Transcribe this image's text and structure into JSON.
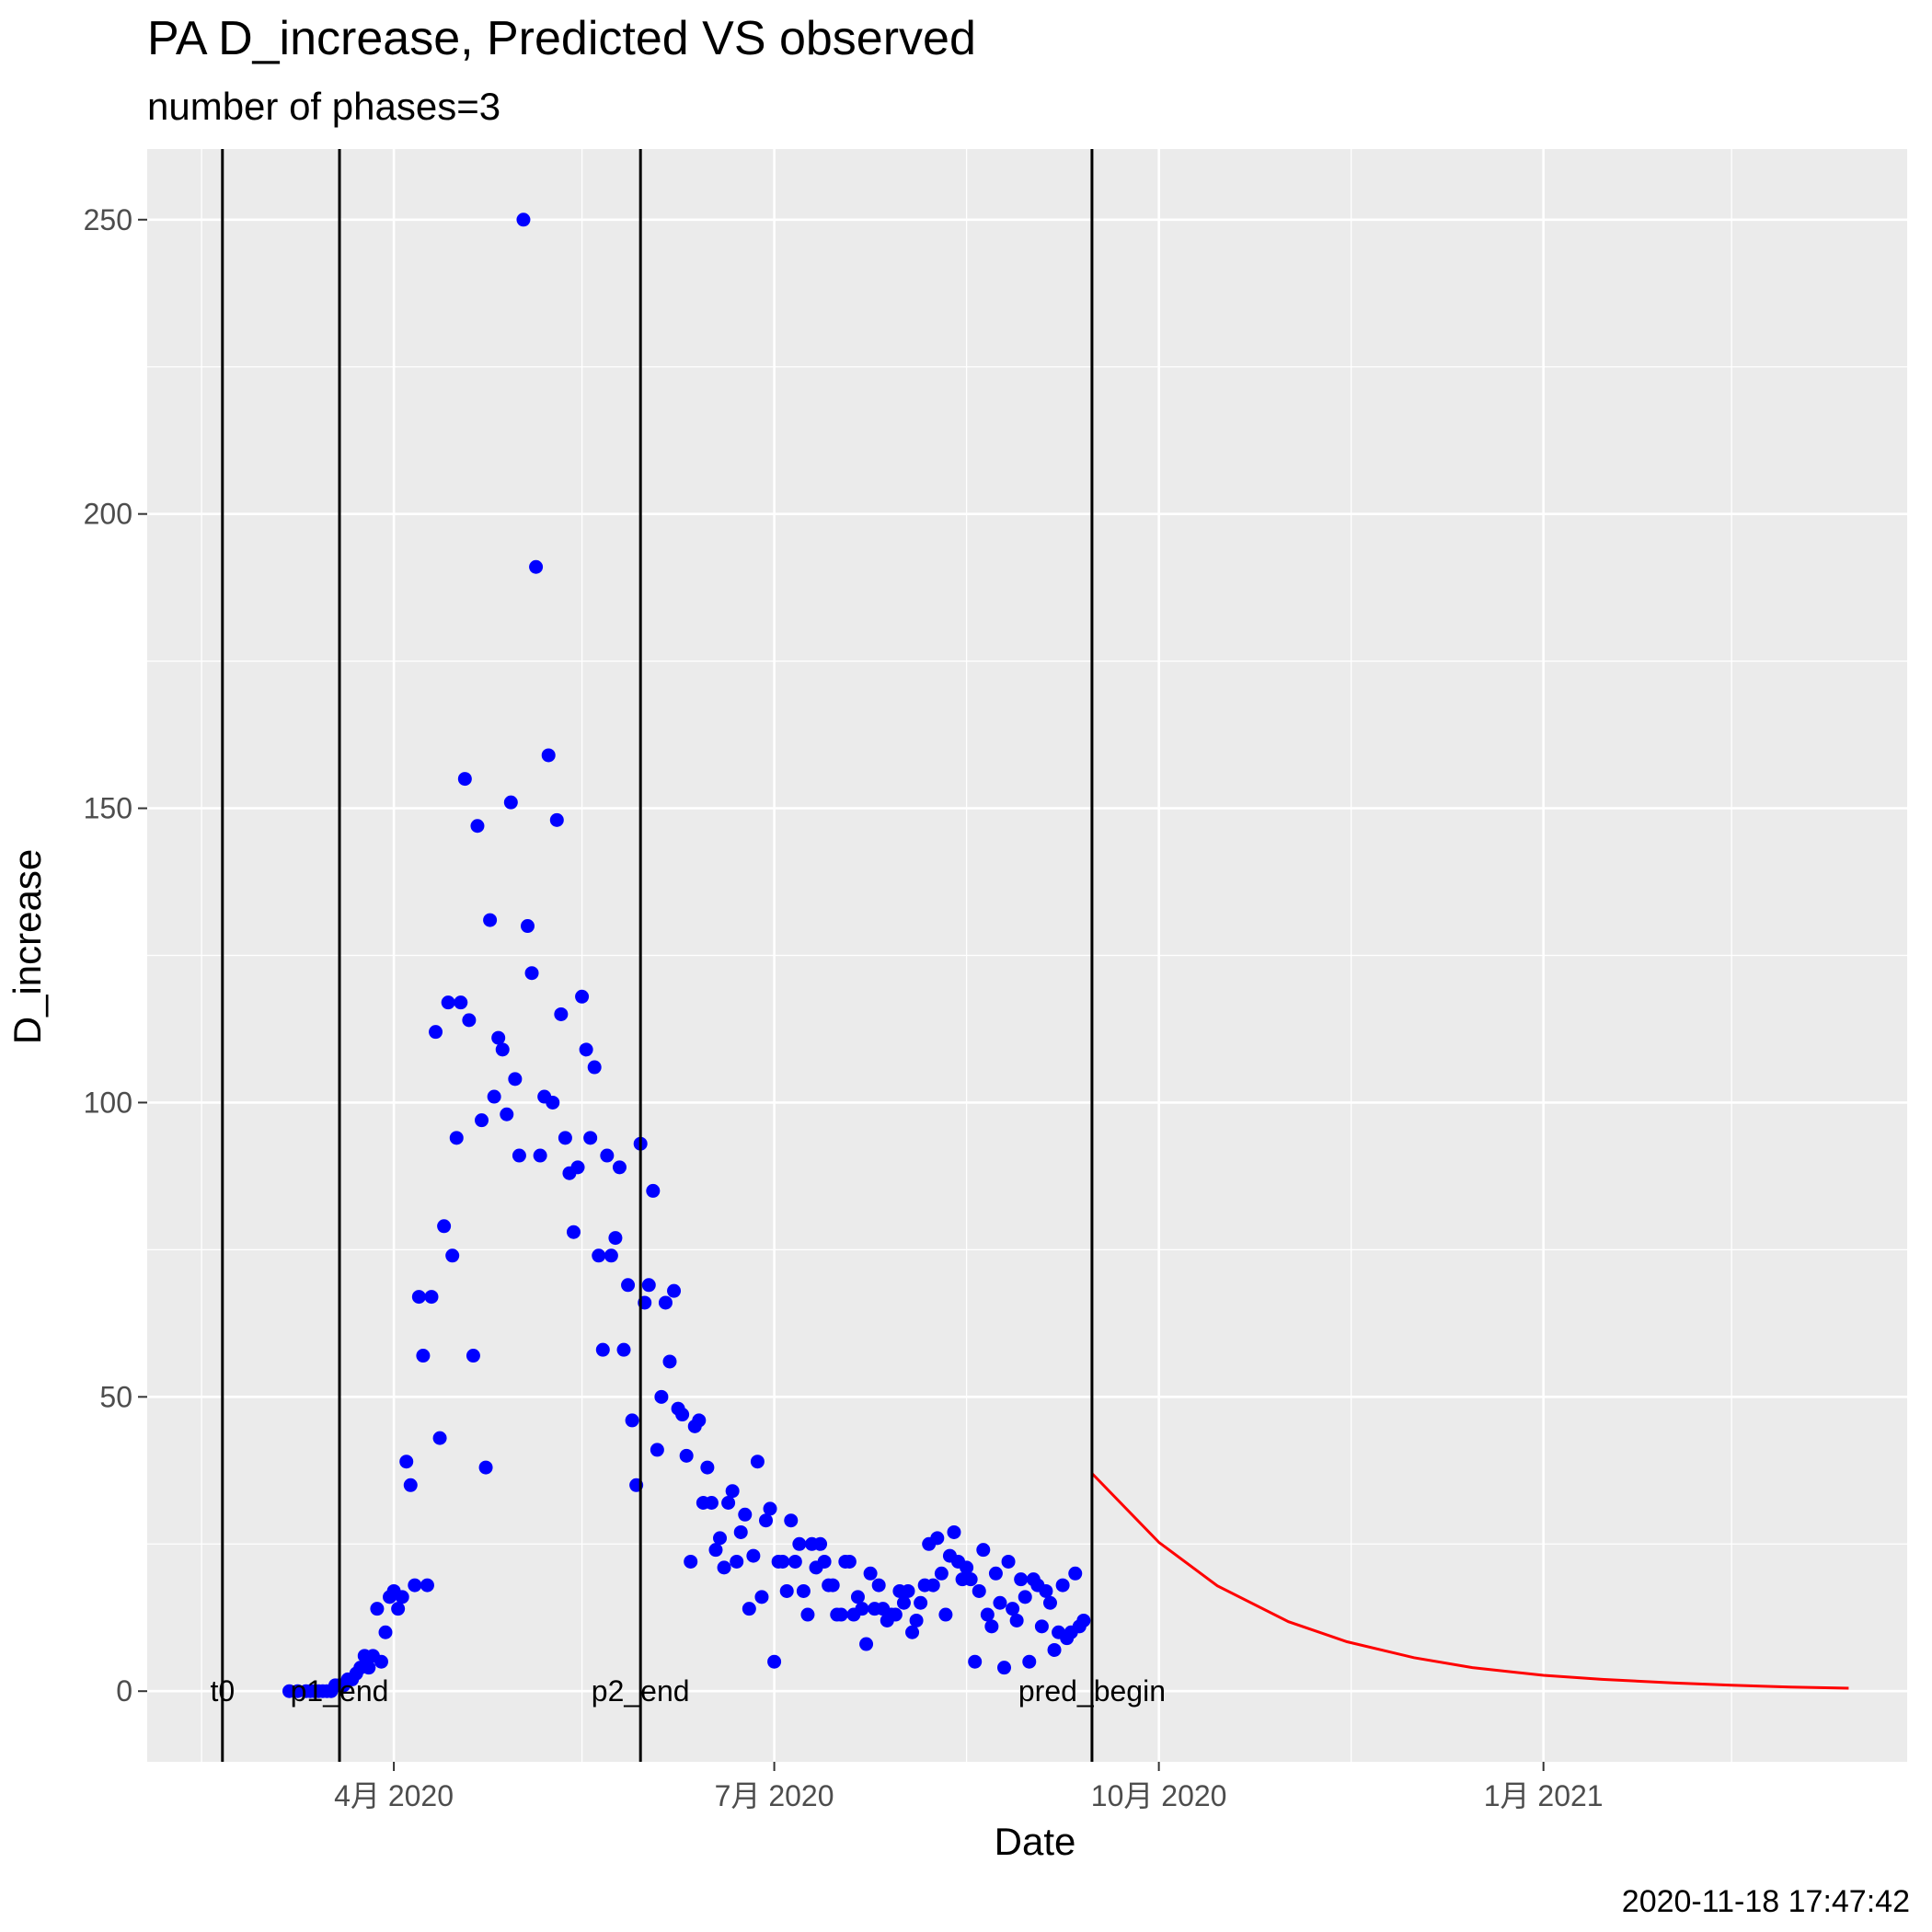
{
  "chart_data": {
    "type": "scatter",
    "title": "PA D_increase, Predicted VS observed",
    "subtitle": "number of phases=3",
    "xlabel": "Date",
    "ylabel": "D_increase",
    "caption": "2020-11-18 17:47:42",
    "xlim": [
      "2020-02-02",
      "2021-03-29"
    ],
    "ylim": [
      -12,
      262
    ],
    "x_ticks": [
      {
        "date": "2020-04-01",
        "label": "4月 2020"
      },
      {
        "date": "2020-07-01",
        "label": "7月 2020"
      },
      {
        "date": "2020-10-01",
        "label": "10月 2020"
      },
      {
        "date": "2021-01-01",
        "label": "1月 2021"
      }
    ],
    "y_ticks": [
      0,
      50,
      100,
      150,
      200,
      250
    ],
    "grid": true,
    "background": "#ebebeb",
    "vlines": [
      {
        "label": "t0",
        "date": "2020-02-20"
      },
      {
        "label": "p1_end",
        "date": "2020-03-19"
      },
      {
        "label": "p2_end",
        "date": "2020-05-30"
      },
      {
        "label": "pred_begin",
        "date": "2020-09-15"
      }
    ],
    "series": [
      {
        "type": "scatter",
        "color": "#0000ff",
        "points": [
          [
            "2020-03-07",
            0
          ],
          [
            "2020-03-09",
            0
          ],
          [
            "2020-03-11",
            0
          ],
          [
            "2020-03-12",
            0
          ],
          [
            "2020-03-13",
            0
          ],
          [
            "2020-03-14",
            0
          ],
          [
            "2020-03-15",
            0
          ],
          [
            "2020-03-16",
            0
          ],
          [
            "2020-03-17",
            0
          ],
          [
            "2020-03-18",
            1
          ],
          [
            "2020-03-19",
            1
          ],
          [
            "2020-03-20",
            1
          ],
          [
            "2020-03-21",
            2
          ],
          [
            "2020-03-22",
            2
          ],
          [
            "2020-03-23",
            3
          ],
          [
            "2020-03-24",
            4
          ],
          [
            "2020-03-25",
            6
          ],
          [
            "2020-03-26",
            4
          ],
          [
            "2020-03-27",
            6
          ],
          [
            "2020-03-28",
            14
          ],
          [
            "2020-03-29",
            5
          ],
          [
            "2020-03-30",
            10
          ],
          [
            "2020-03-31",
            16
          ],
          [
            "2020-04-01",
            17
          ],
          [
            "2020-04-02",
            14
          ],
          [
            "2020-04-03",
            16
          ],
          [
            "2020-04-04",
            39
          ],
          [
            "2020-04-05",
            35
          ],
          [
            "2020-04-06",
            18
          ],
          [
            "2020-04-07",
            67
          ],
          [
            "2020-04-08",
            57
          ],
          [
            "2020-04-09",
            18
          ],
          [
            "2020-04-10",
            67
          ],
          [
            "2020-04-11",
            112
          ],
          [
            "2020-04-12",
            43
          ],
          [
            "2020-04-13",
            79
          ],
          [
            "2020-04-14",
            117
          ],
          [
            "2020-04-15",
            74
          ],
          [
            "2020-04-16",
            94
          ],
          [
            "2020-04-17",
            117
          ],
          [
            "2020-04-18",
            155
          ],
          [
            "2020-04-19",
            114
          ],
          [
            "2020-04-20",
            57
          ],
          [
            "2020-04-21",
            147
          ],
          [
            "2020-04-22",
            97
          ],
          [
            "2020-04-23",
            38
          ],
          [
            "2020-04-24",
            131
          ],
          [
            "2020-04-25",
            101
          ],
          [
            "2020-04-26",
            111
          ],
          [
            "2020-04-27",
            109
          ],
          [
            "2020-04-28",
            98
          ],
          [
            "2020-04-29",
            151
          ],
          [
            "2020-04-30",
            104
          ],
          [
            "2020-05-01",
            91
          ],
          [
            "2020-05-02",
            250
          ],
          [
            "2020-05-03",
            130
          ],
          [
            "2020-05-04",
            122
          ],
          [
            "2020-05-05",
            191
          ],
          [
            "2020-05-06",
            91
          ],
          [
            "2020-05-07",
            101
          ],
          [
            "2020-05-08",
            159
          ],
          [
            "2020-05-09",
            100
          ],
          [
            "2020-05-10",
            148
          ],
          [
            "2020-05-11",
            115
          ],
          [
            "2020-05-12",
            94
          ],
          [
            "2020-05-13",
            88
          ],
          [
            "2020-05-14",
            78
          ],
          [
            "2020-05-15",
            89
          ],
          [
            "2020-05-16",
            118
          ],
          [
            "2020-05-17",
            109
          ],
          [
            "2020-05-18",
            94
          ],
          [
            "2020-05-19",
            106
          ],
          [
            "2020-05-20",
            74
          ],
          [
            "2020-05-21",
            58
          ],
          [
            "2020-05-22",
            91
          ],
          [
            "2020-05-23",
            74
          ],
          [
            "2020-05-24",
            77
          ],
          [
            "2020-05-25",
            89
          ],
          [
            "2020-05-26",
            58
          ],
          [
            "2020-05-27",
            69
          ],
          [
            "2020-05-28",
            46
          ],
          [
            "2020-05-29",
            35
          ],
          [
            "2020-05-30",
            93
          ],
          [
            "2020-05-31",
            66
          ],
          [
            "2020-06-01",
            69
          ],
          [
            "2020-06-02",
            85
          ],
          [
            "2020-06-03",
            41
          ],
          [
            "2020-06-04",
            50
          ],
          [
            "2020-06-05",
            66
          ],
          [
            "2020-06-06",
            56
          ],
          [
            "2020-06-07",
            68
          ],
          [
            "2020-06-08",
            48
          ],
          [
            "2020-06-09",
            47
          ],
          [
            "2020-06-10",
            40
          ],
          [
            "2020-06-11",
            22
          ],
          [
            "2020-06-12",
            45
          ],
          [
            "2020-06-13",
            46
          ],
          [
            "2020-06-14",
            32
          ],
          [
            "2020-06-15",
            38
          ],
          [
            "2020-06-16",
            32
          ],
          [
            "2020-06-17",
            24
          ],
          [
            "2020-06-18",
            26
          ],
          [
            "2020-06-19",
            21
          ],
          [
            "2020-06-20",
            32
          ],
          [
            "2020-06-21",
            34
          ],
          [
            "2020-06-22",
            22
          ],
          [
            "2020-06-23",
            27
          ],
          [
            "2020-06-24",
            30
          ],
          [
            "2020-06-25",
            14
          ],
          [
            "2020-06-26",
            23
          ],
          [
            "2020-06-27",
            39
          ],
          [
            "2020-06-28",
            16
          ],
          [
            "2020-06-29",
            29
          ],
          [
            "2020-06-30",
            31
          ],
          [
            "2020-07-01",
            5
          ],
          [
            "2020-07-02",
            22
          ],
          [
            "2020-07-03",
            22
          ],
          [
            "2020-07-04",
            17
          ],
          [
            "2020-07-05",
            29
          ],
          [
            "2020-07-06",
            22
          ],
          [
            "2020-07-07",
            25
          ],
          [
            "2020-07-08",
            17
          ],
          [
            "2020-07-09",
            13
          ],
          [
            "2020-07-10",
            25
          ],
          [
            "2020-07-11",
            21
          ],
          [
            "2020-07-12",
            25
          ],
          [
            "2020-07-13",
            22
          ],
          [
            "2020-07-14",
            18
          ],
          [
            "2020-07-15",
            18
          ],
          [
            "2020-07-16",
            13
          ],
          [
            "2020-07-17",
            13
          ],
          [
            "2020-07-18",
            22
          ],
          [
            "2020-07-19",
            22
          ],
          [
            "2020-07-20",
            13
          ],
          [
            "2020-07-21",
            16
          ],
          [
            "2020-07-22",
            14
          ],
          [
            "2020-07-23",
            8
          ],
          [
            "2020-07-24",
            20
          ],
          [
            "2020-07-25",
            14
          ],
          [
            "2020-07-26",
            18
          ],
          [
            "2020-07-27",
            14
          ],
          [
            "2020-07-28",
            12
          ],
          [
            "2020-07-29",
            13
          ],
          [
            "2020-07-30",
            13
          ],
          [
            "2020-07-31",
            17
          ],
          [
            "2020-08-01",
            15
          ],
          [
            "2020-08-02",
            17
          ],
          [
            "2020-08-03",
            10
          ],
          [
            "2020-08-04",
            12
          ],
          [
            "2020-08-05",
            15
          ],
          [
            "2020-08-06",
            18
          ],
          [
            "2020-08-07",
            25
          ],
          [
            "2020-08-08",
            18
          ],
          [
            "2020-08-09",
            26
          ],
          [
            "2020-08-10",
            20
          ],
          [
            "2020-08-11",
            13
          ],
          [
            "2020-08-12",
            23
          ],
          [
            "2020-08-13",
            27
          ],
          [
            "2020-08-14",
            22
          ],
          [
            "2020-08-15",
            19
          ],
          [
            "2020-08-16",
            21
          ],
          [
            "2020-08-17",
            19
          ],
          [
            "2020-08-18",
            5
          ],
          [
            "2020-08-19",
            17
          ],
          [
            "2020-08-20",
            24
          ],
          [
            "2020-08-21",
            13
          ],
          [
            "2020-08-22",
            11
          ],
          [
            "2020-08-23",
            20
          ],
          [
            "2020-08-24",
            15
          ],
          [
            "2020-08-25",
            4
          ],
          [
            "2020-08-26",
            22
          ],
          [
            "2020-08-27",
            14
          ],
          [
            "2020-08-28",
            12
          ],
          [
            "2020-08-29",
            19
          ],
          [
            "2020-08-30",
            16
          ],
          [
            "2020-08-31",
            5
          ],
          [
            "2020-09-01",
            19
          ],
          [
            "2020-09-02",
            18
          ],
          [
            "2020-09-03",
            11
          ],
          [
            "2020-09-04",
            17
          ],
          [
            "2020-09-05",
            15
          ],
          [
            "2020-09-06",
            7
          ],
          [
            "2020-09-07",
            10
          ],
          [
            "2020-09-08",
            18
          ],
          [
            "2020-09-09",
            9
          ],
          [
            "2020-09-10",
            10
          ],
          [
            "2020-09-11",
            20
          ],
          [
            "2020-09-12",
            11
          ],
          [
            "2020-09-13",
            12
          ]
        ]
      },
      {
        "type": "line",
        "color": "#ff0000",
        "points": [
          [
            "2020-09-15",
            37
          ],
          [
            "2020-10-01",
            25.3
          ],
          [
            "2020-10-15",
            17.9
          ],
          [
            "2020-11-01",
            11.8
          ],
          [
            "2020-11-15",
            8.4
          ],
          [
            "2020-12-01",
            5.7
          ],
          [
            "2020-12-15",
            4.0
          ],
          [
            "2021-01-01",
            2.7
          ],
          [
            "2021-01-15",
            2.0
          ],
          [
            "2021-02-01",
            1.4
          ],
          [
            "2021-02-15",
            1.0
          ],
          [
            "2021-03-01",
            0.7
          ],
          [
            "2021-03-15",
            0.5
          ]
        ]
      }
    ]
  }
}
